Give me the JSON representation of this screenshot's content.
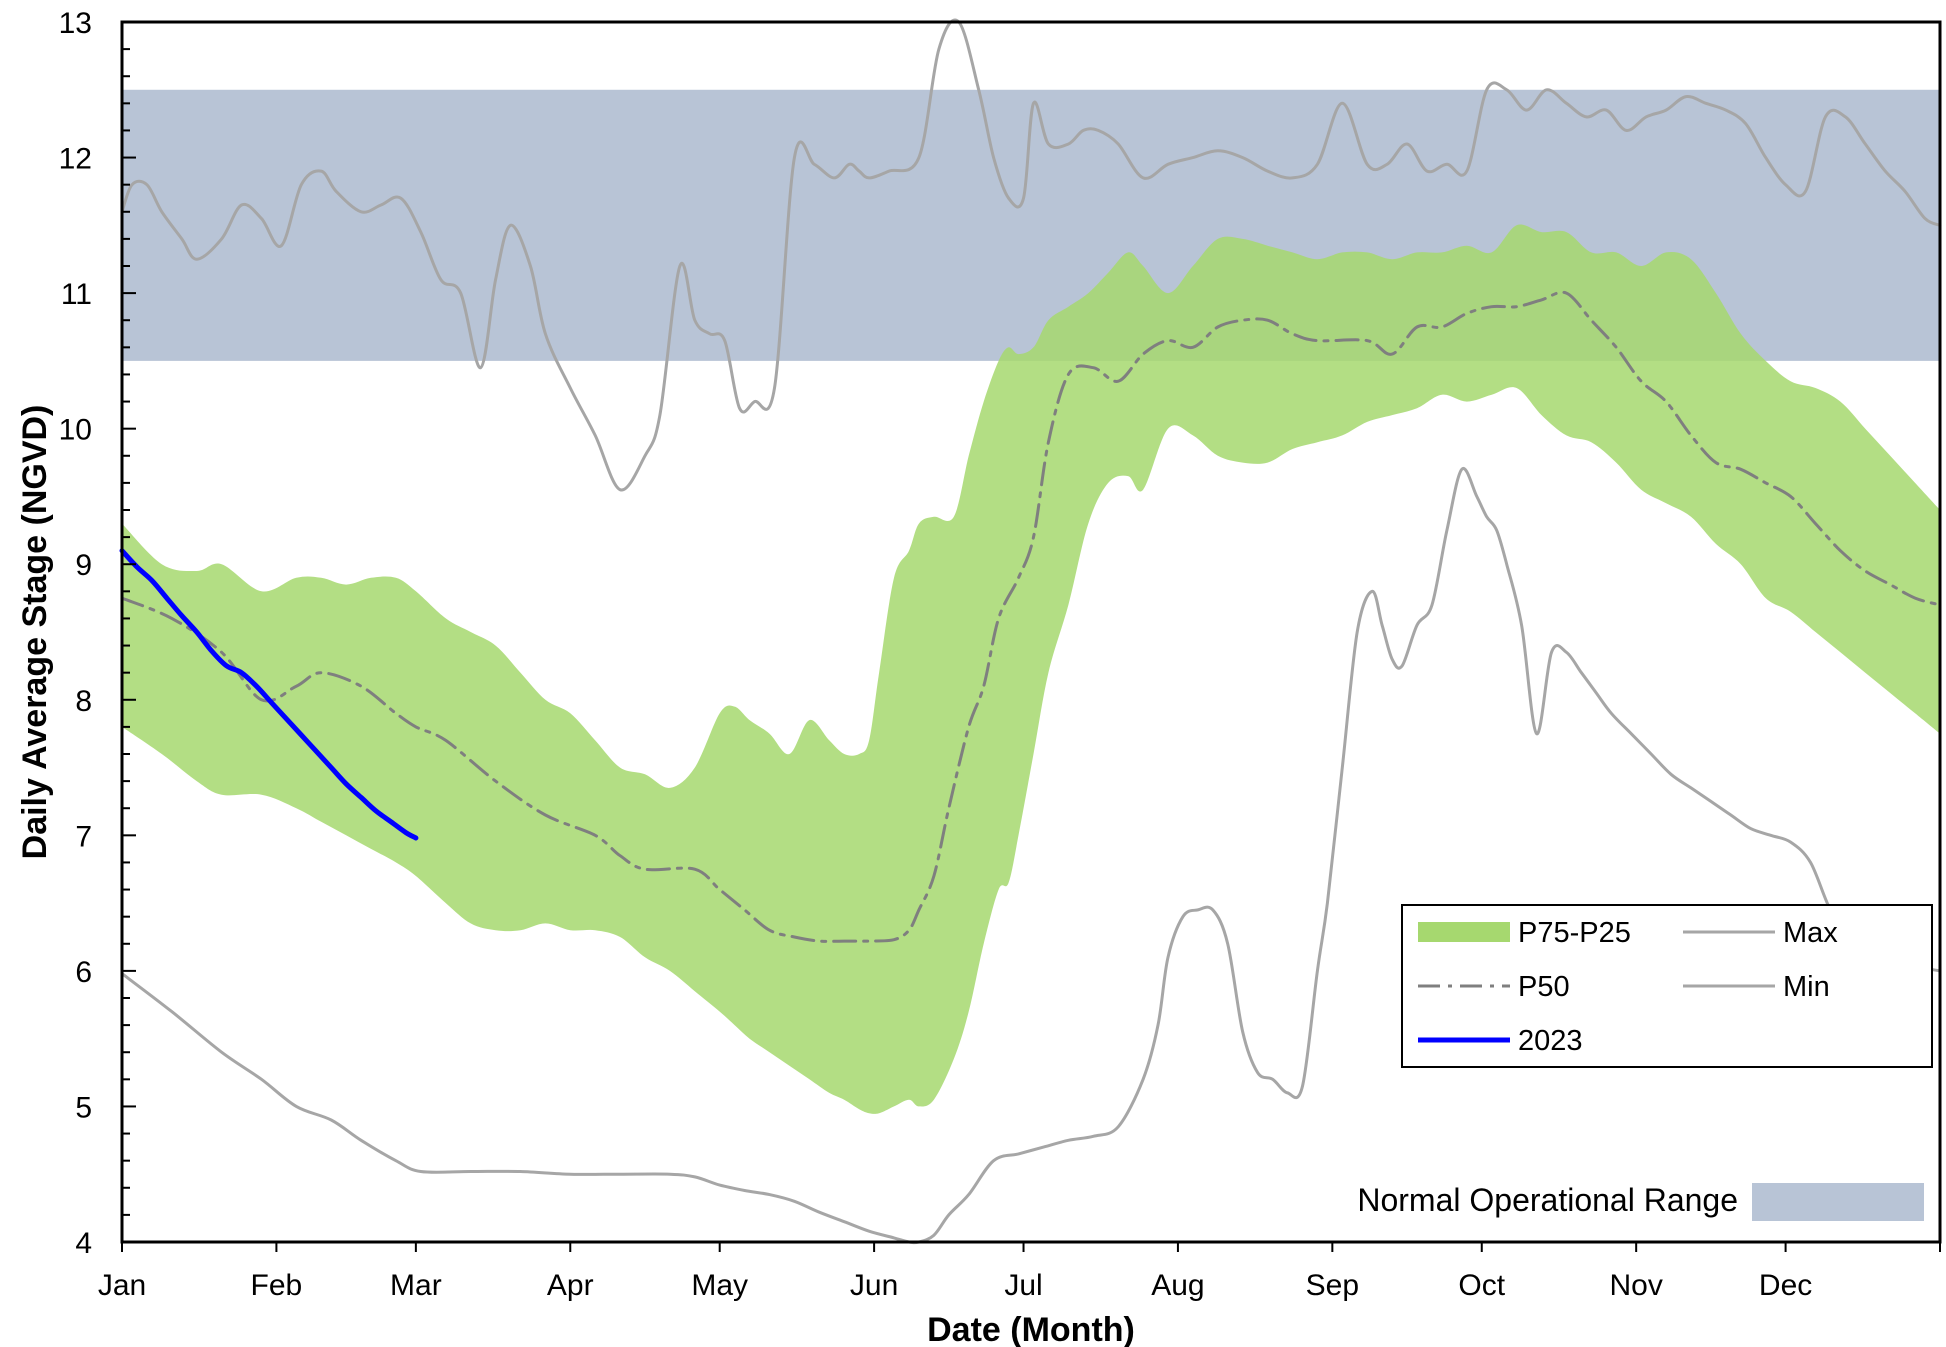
{
  "chart_data": {
    "type": "line",
    "title": "",
    "xlabel": "Date (Month)",
    "ylabel": "Daily Average Stage (NGVD)",
    "ylim": [
      4,
      13
    ],
    "yticks": [
      4,
      5,
      6,
      7,
      8,
      9,
      10,
      11,
      12,
      13
    ],
    "xlim": [
      0,
      365
    ],
    "month_labels": [
      "Jan",
      "Feb",
      "Mar",
      "Apr",
      "May",
      "Jun",
      "Jul",
      "Aug",
      "Sep",
      "Oct",
      "Nov",
      "Dec"
    ],
    "month_starts": [
      0,
      31,
      59,
      90,
      120,
      151,
      181,
      212,
      243,
      273,
      304,
      334
    ],
    "x_unit": "day of year",
    "grid": false,
    "legend_position": "bottom-right",
    "normal_operational_range": {
      "label": "Normal Operational Range",
      "low": 10.5,
      "high": 12.5,
      "color": "#b8c4d6"
    },
    "series": [
      {
        "name": "P75-P25",
        "kind": "band",
        "color": "#a6d86f",
        "x": [
          0,
          8,
          15,
          20,
          28,
          35,
          40,
          45,
          50,
          55,
          59,
          65,
          70,
          75,
          80,
          85,
          90,
          95,
          100,
          105,
          110,
          115,
          120,
          123,
          126,
          130,
          134,
          138,
          142,
          145,
          148,
          150,
          152,
          155,
          158,
          160,
          163,
          167,
          170,
          173,
          176,
          178,
          180,
          183,
          186,
          190,
          194,
          198,
          202,
          205,
          210,
          215,
          220,
          225,
          230,
          235,
          240,
          245,
          250,
          255,
          260,
          265,
          270,
          275,
          280,
          285,
          290,
          295,
          300,
          305,
          310,
          315,
          320,
          325,
          330,
          335,
          340,
          345,
          350,
          355,
          360,
          365
        ],
        "upper": [
          9.3,
          9.0,
          8.95,
          9.0,
          8.8,
          8.9,
          8.9,
          8.85,
          8.9,
          8.9,
          8.8,
          8.6,
          8.5,
          8.4,
          8.2,
          8.0,
          7.9,
          7.7,
          7.5,
          7.45,
          7.35,
          7.5,
          7.9,
          7.95,
          7.85,
          7.75,
          7.6,
          7.85,
          7.7,
          7.6,
          7.6,
          7.7,
          8.2,
          8.9,
          9.1,
          9.3,
          9.35,
          9.35,
          9.8,
          10.2,
          10.5,
          10.6,
          10.55,
          10.6,
          10.8,
          10.9,
          11.0,
          11.15,
          11.3,
          11.2,
          11.0,
          11.2,
          11.4,
          11.4,
          11.35,
          11.3,
          11.25,
          11.3,
          11.3,
          11.25,
          11.3,
          11.3,
          11.35,
          11.3,
          11.5,
          11.45,
          11.45,
          11.3,
          11.3,
          11.2,
          11.3,
          11.25,
          11.0,
          10.7,
          10.5,
          10.35,
          10.3,
          10.2,
          10.0,
          9.8,
          9.6,
          9.4
        ],
        "lower": [
          7.8,
          7.6,
          7.4,
          7.3,
          7.3,
          7.2,
          7.1,
          7.0,
          6.9,
          6.8,
          6.7,
          6.5,
          6.35,
          6.3,
          6.3,
          6.35,
          6.3,
          6.3,
          6.25,
          6.1,
          6.0,
          5.85,
          5.7,
          5.6,
          5.5,
          5.4,
          5.3,
          5.2,
          5.1,
          5.05,
          4.98,
          4.95,
          4.95,
          5.0,
          5.05,
          5.0,
          5.05,
          5.35,
          5.7,
          6.2,
          6.6,
          6.65,
          7.0,
          7.6,
          8.2,
          8.7,
          9.3,
          9.6,
          9.65,
          9.55,
          10.0,
          9.95,
          9.8,
          9.75,
          9.75,
          9.85,
          9.9,
          9.95,
          10.05,
          10.1,
          10.15,
          10.25,
          10.2,
          10.25,
          10.3,
          10.1,
          9.95,
          9.9,
          9.75,
          9.55,
          9.45,
          9.35,
          9.15,
          9.0,
          8.75,
          8.65,
          8.5,
          8.35,
          8.2,
          8.05,
          7.9,
          7.75
        ]
      },
      {
        "name": "P50",
        "kind": "line",
        "dash": "dash-dot",
        "color": "#7f7f7f",
        "x": [
          0,
          10,
          20,
          28,
          35,
          40,
          48,
          55,
          59,
          65,
          75,
          85,
          95,
          100,
          105,
          115,
          120,
          125,
          130,
          135,
          140,
          145,
          150,
          155,
          158,
          160,
          163,
          166,
          170,
          173,
          176,
          180,
          183,
          186,
          190,
          195,
          200,
          205,
          210,
          215,
          220,
          225,
          230,
          235,
          240,
          250,
          255,
          260,
          265,
          270,
          275,
          280,
          285,
          290,
          295,
          300,
          305,
          310,
          315,
          320,
          325,
          330,
          335,
          340,
          345,
          350,
          355,
          360,
          365
        ],
        "values": [
          8.75,
          8.6,
          8.35,
          8.0,
          8.1,
          8.2,
          8.1,
          7.9,
          7.8,
          7.7,
          7.4,
          7.15,
          7.0,
          6.85,
          6.75,
          6.75,
          6.6,
          6.45,
          6.3,
          6.25,
          6.22,
          6.22,
          6.22,
          6.23,
          6.3,
          6.45,
          6.7,
          7.2,
          7.8,
          8.1,
          8.6,
          8.9,
          9.2,
          9.9,
          10.4,
          10.45,
          10.35,
          10.55,
          10.65,
          10.6,
          10.75,
          10.8,
          10.8,
          10.7,
          10.65,
          10.65,
          10.55,
          10.75,
          10.75,
          10.85,
          10.9,
          10.9,
          10.95,
          11.0,
          10.8,
          10.6,
          10.35,
          10.2,
          9.95,
          9.75,
          9.7,
          9.6,
          9.5,
          9.3,
          9.1,
          8.95,
          8.85,
          8.75,
          8.7
        ]
      },
      {
        "name": "Max",
        "kind": "line",
        "color": "#a6a6a6",
        "x": [
          0,
          2,
          5,
          8,
          12,
          15,
          20,
          24,
          28,
          32,
          36,
          40,
          43,
          48,
          52,
          56,
          60,
          64,
          68,
          72,
          75,
          78,
          82,
          85,
          90,
          95,
          100,
          105,
          108,
          112,
          115,
          118,
          121,
          124,
          127,
          131,
          135,
          139,
          143,
          146,
          148,
          150,
          154,
          160,
          164,
          168,
          172,
          175,
          178,
          181,
          183,
          186,
          190,
          193,
          196,
          200,
          205,
          210,
          215,
          220,
          225,
          230,
          235,
          240,
          245,
          250,
          254,
          258,
          262,
          266,
          270,
          274,
          278,
          282,
          286,
          290,
          294,
          298,
          302,
          306,
          310,
          314,
          318,
          322,
          326,
          330,
          334,
          338,
          342,
          346,
          350,
          354,
          358,
          362,
          365
        ],
        "values": [
          11.6,
          11.8,
          11.8,
          11.6,
          11.4,
          11.25,
          11.4,
          11.65,
          11.55,
          11.35,
          11.8,
          11.9,
          11.75,
          11.6,
          11.65,
          11.7,
          11.45,
          11.1,
          11.0,
          10.45,
          11.1,
          11.5,
          11.2,
          10.7,
          10.3,
          9.95,
          9.55,
          9.8,
          10.1,
          11.2,
          10.8,
          10.7,
          10.65,
          10.15,
          10.2,
          10.3,
          12.0,
          11.95,
          11.85,
          11.95,
          11.9,
          11.85,
          11.9,
          12.0,
          12.8,
          13.0,
          12.5,
          12.0,
          11.7,
          11.7,
          12.4,
          12.1,
          12.1,
          12.2,
          12.2,
          12.1,
          11.85,
          11.95,
          12.0,
          12.05,
          12.0,
          11.9,
          11.85,
          11.95,
          12.4,
          11.95,
          11.95,
          12.1,
          11.9,
          11.95,
          11.9,
          12.5,
          12.5,
          12.35,
          12.5,
          12.4,
          12.3,
          12.35,
          12.2,
          12.3,
          12.35,
          12.45,
          12.4,
          12.35,
          12.25,
          12.0,
          11.8,
          11.75,
          12.3,
          12.3,
          12.1,
          11.9,
          11.75,
          11.55,
          11.5
        ]
      },
      {
        "name": "Min",
        "kind": "line",
        "color": "#a6a6a6",
        "x": [
          0,
          10,
          20,
          28,
          35,
          42,
          48,
          55,
          60,
          70,
          80,
          90,
          100,
          110,
          115,
          120,
          125,
          130,
          135,
          140,
          145,
          150,
          155,
          158,
          160,
          163,
          166,
          170,
          175,
          180,
          185,
          190,
          195,
          200,
          205,
          208,
          210,
          213,
          216,
          219,
          222,
          225,
          228,
          231,
          234,
          237,
          240,
          242,
          245,
          248,
          251,
          253,
          255,
          257,
          260,
          263,
          266,
          269,
          272,
          274,
          276,
          278,
          281,
          284,
          287,
          290,
          293,
          296,
          299,
          303,
          307,
          311,
          315,
          319,
          323,
          327,
          331,
          335,
          339,
          343,
          347,
          351,
          355,
          359,
          362,
          365
        ],
        "values": [
          5.98,
          5.7,
          5.4,
          5.2,
          5.0,
          4.9,
          4.75,
          4.6,
          4.52,
          4.52,
          4.52,
          4.5,
          4.5,
          4.5,
          4.48,
          4.42,
          4.38,
          4.35,
          4.3,
          4.22,
          4.15,
          4.08,
          4.03,
          4.0,
          4.0,
          4.05,
          4.2,
          4.35,
          4.6,
          4.65,
          4.7,
          4.75,
          4.78,
          4.85,
          5.2,
          5.6,
          6.1,
          6.4,
          6.45,
          6.45,
          6.2,
          5.55,
          5.25,
          5.2,
          5.1,
          5.15,
          6.0,
          6.5,
          7.5,
          8.5,
          8.8,
          8.55,
          8.3,
          8.25,
          8.55,
          8.7,
          9.25,
          9.7,
          9.5,
          9.35,
          9.25,
          9.0,
          8.55,
          7.75,
          8.35,
          8.35,
          8.2,
          8.05,
          7.9,
          7.75,
          7.6,
          7.45,
          7.35,
          7.25,
          7.15,
          7.05,
          7.0,
          6.95,
          6.8,
          6.45,
          6.25,
          6.2,
          6.1,
          6.05,
          6.02,
          6.0
        ]
      },
      {
        "name": "2023",
        "kind": "line",
        "color": "#0000ff",
        "x": [
          0,
          3,
          6,
          9,
          12,
          15,
          18,
          21,
          24,
          27,
          30,
          33,
          36,
          39,
          42,
          45,
          48,
          51,
          54,
          57,
          59
        ],
        "values": [
          9.1,
          8.98,
          8.88,
          8.75,
          8.62,
          8.5,
          8.36,
          8.25,
          8.2,
          8.1,
          7.98,
          7.86,
          7.74,
          7.62,
          7.5,
          7.38,
          7.28,
          7.18,
          7.1,
          7.02,
          6.98
        ]
      }
    ]
  }
}
